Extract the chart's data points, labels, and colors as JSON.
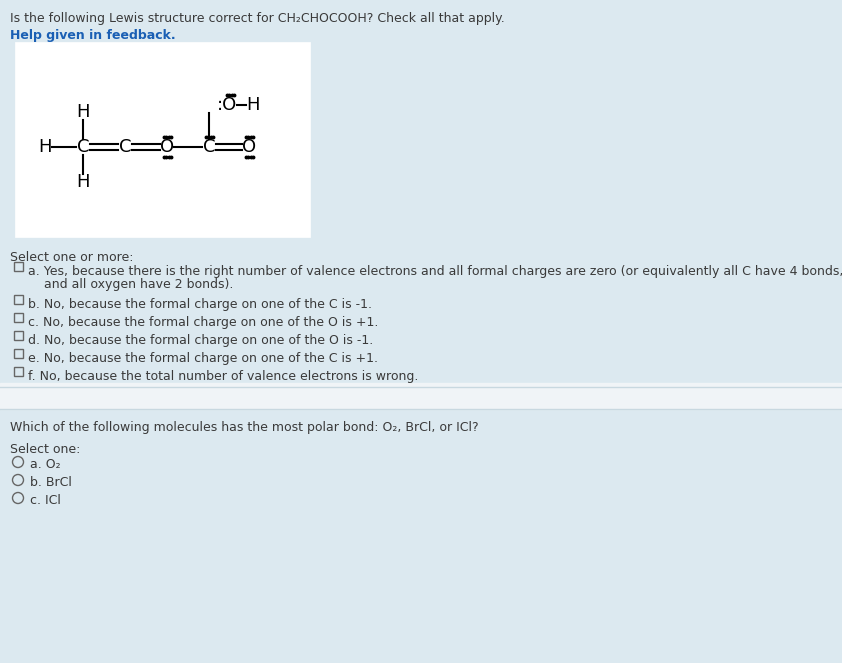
{
  "bg_color": "#dce9f0",
  "white": "#ffffff",
  "separator_white": "#f0f4f7",
  "text_color": "#3a3a3a",
  "blue_color": "#1a5fb4",
  "question1": "Is the following Lewis structure correct for CH₂CHOCOOH? Check all that apply.",
  "help_text": "Help given in feedback.",
  "select_one_or_more": "Select one or more:",
  "options_q1_a": "a. Yes, because there is the right number of valence electrons and all formal charges are zero (or equivalently all C have 4 bonds,",
  "options_q1_a2": "    and all oxygen have 2 bonds).",
  "options_q1": [
    "b. No, because the formal charge on one of the C is -1.",
    "c. No, because the formal charge on one of the O is +1.",
    "d. No, because the formal charge on one of the O is -1.",
    "e. No, because the formal charge on one of the C is +1.",
    "f. No, because the total number of valence electrons is wrong."
  ],
  "question2": "Which of the following molecules has the most polar bond: O₂, BrCl, or ICl?",
  "select_one": "Select one:",
  "options_q2": [
    "a. O₂",
    "b. BrCl",
    "c. ICl"
  ],
  "fig_width": 8.42,
  "fig_height": 6.63
}
